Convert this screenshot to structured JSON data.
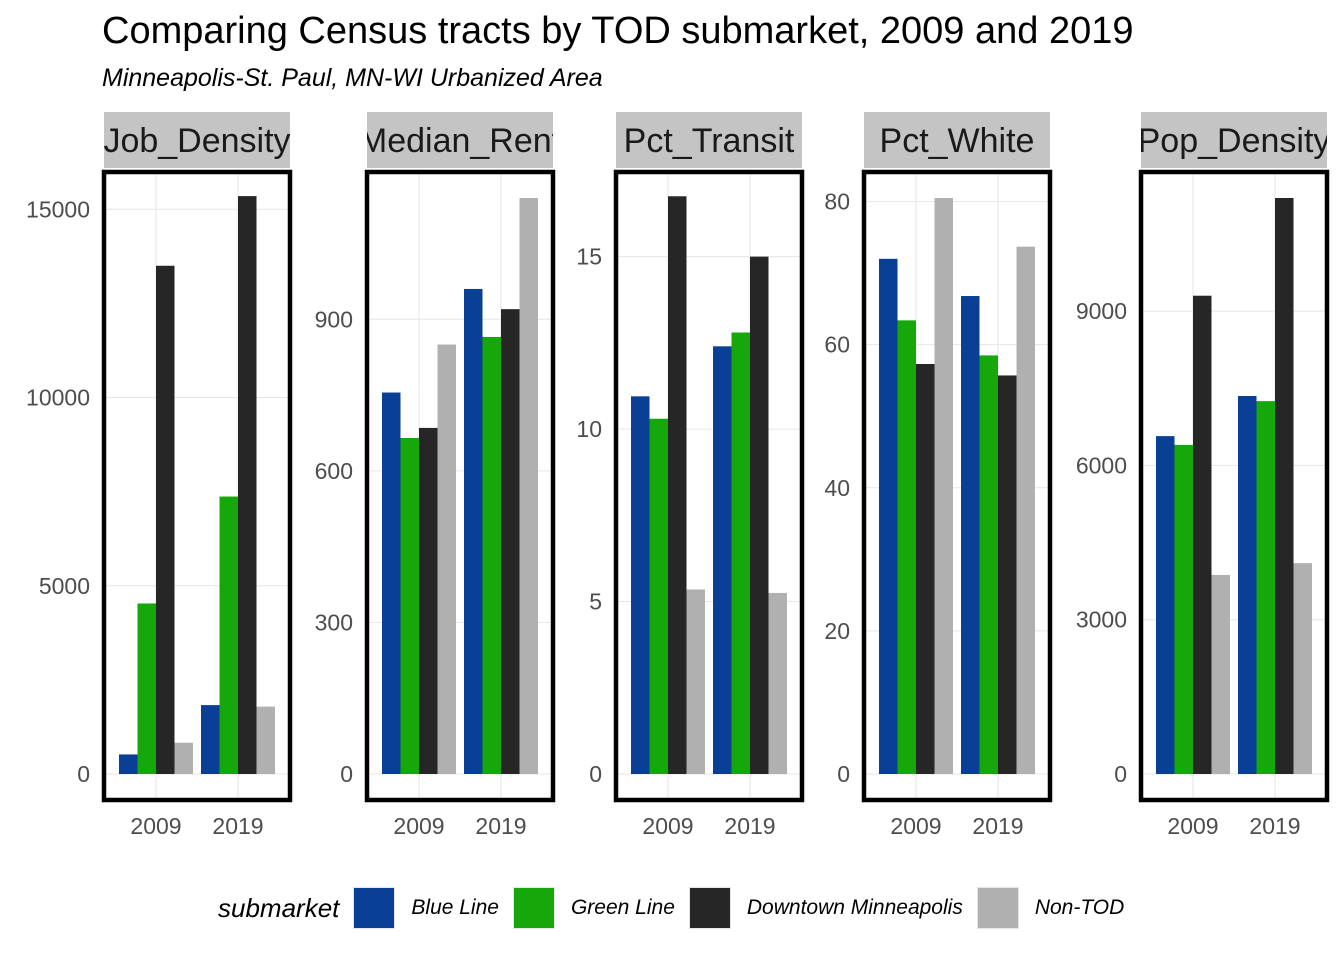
{
  "chart_data": {
    "type": "bar",
    "title": "Comparing Census tracts by TOD submarket, 2009 and 2019",
    "subtitle": "Minneapolis-St. Paul, MN-WI Urbanized Area",
    "categories": [
      "2009",
      "2019"
    ],
    "legend": {
      "title": "submarket",
      "position": "bottom",
      "entries": [
        {
          "name": "Blue Line",
          "color": "#0a3f96"
        },
        {
          "name": "Green Line",
          "color": "#16a70a"
        },
        {
          "name": "Downtown Minneapolis",
          "color": "#262626"
        },
        {
          "name": "Non-TOD",
          "color": "#b0b0b0"
        }
      ]
    },
    "grid": true,
    "facets": [
      {
        "label": "Job_Density",
        "ylim": [
          0,
          15300
        ],
        "yticks": [
          0,
          5000,
          10000,
          15000
        ],
        "series": [
          {
            "name": "Blue Line",
            "values": [
              520,
              1830
            ]
          },
          {
            "name": "Green Line",
            "values": [
              4530,
              7370
            ]
          },
          {
            "name": "Downtown Minneapolis",
            "values": [
              13500,
              15350
            ]
          },
          {
            "name": "Non-TOD",
            "values": [
              830,
              1790
            ]
          }
        ]
      },
      {
        "label": "Median_Rent",
        "ylim": [
          0,
          1140
        ],
        "yticks": [
          0,
          300,
          600,
          900
        ],
        "series": [
          {
            "name": "Blue Line",
            "values": [
              755,
              960
            ]
          },
          {
            "name": "Green Line",
            "values": [
              665,
              865
            ]
          },
          {
            "name": "Downtown Minneapolis",
            "values": [
              685,
              920
            ]
          },
          {
            "name": "Non-TOD",
            "values": [
              850,
              1140
            ]
          }
        ]
      },
      {
        "label": "Pct_Transit",
        "ylim": [
          0,
          16.7
        ],
        "yticks": [
          0,
          5,
          10,
          15
        ],
        "series": [
          {
            "name": "Blue Line",
            "values": [
              10.95,
              12.4
            ]
          },
          {
            "name": "Green Line",
            "values": [
              10.3,
              12.8
            ]
          },
          {
            "name": "Downtown Minneapolis",
            "values": [
              16.75,
              15.0
            ]
          },
          {
            "name": "Non-TOD",
            "values": [
              5.35,
              5.25
            ]
          }
        ]
      },
      {
        "label": "Pct_White",
        "ylim": [
          0,
          80.5
        ],
        "yticks": [
          0,
          20,
          40,
          60,
          80
        ],
        "series": [
          {
            "name": "Blue Line",
            "values": [
              72.0,
              66.8
            ]
          },
          {
            "name": "Green Line",
            "values": [
              63.4,
              58.5
            ]
          },
          {
            "name": "Downtown Minneapolis",
            "values": [
              57.3,
              55.7
            ]
          },
          {
            "name": "Non-TOD",
            "values": [
              80.5,
              73.7
            ]
          }
        ]
      },
      {
        "label": "Pop_Density",
        "ylim": [
          0,
          11200
        ],
        "yticks": [
          0,
          3000,
          6000,
          9000
        ],
        "series": [
          {
            "name": "Blue Line",
            "values": [
              6570,
              7350
            ]
          },
          {
            "name": "Green Line",
            "values": [
              6400,
              7250
            ]
          },
          {
            "name": "Downtown Minneapolis",
            "values": [
              9300,
              11200
            ]
          },
          {
            "name": "Non-TOD",
            "values": [
              3870,
              4100
            ]
          }
        ]
      }
    ]
  }
}
